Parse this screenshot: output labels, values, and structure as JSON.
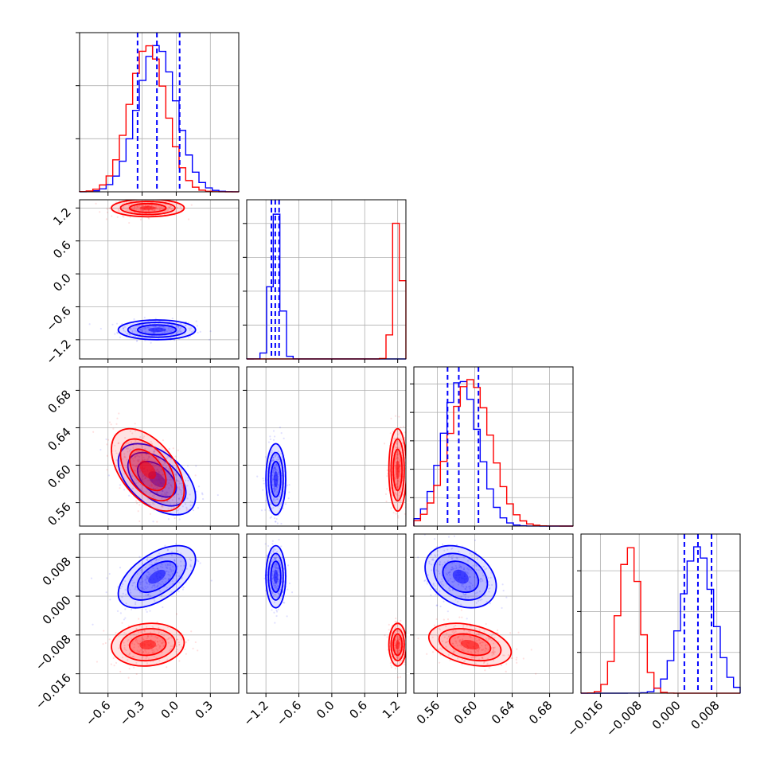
{
  "chart_data": {
    "type": "corner",
    "grid": true,
    "colors": {
      "series_a": "#0000ff",
      "series_b": "#ff0000"
    },
    "series": [
      {
        "color": "#0000ff",
        "mean": [
          -0.17,
          -1.02,
          0.585,
          0.004
        ],
        "sd": [
          0.17,
          0.09,
          0.019,
          0.0032
        ],
        "corr": {
          "0_2": -0.5,
          "0_3": 0.55,
          "2_3": -0.3
        }
      },
      {
        "color": "#ff0000",
        "mean": [
          -0.25,
          1.2,
          0.595,
          -0.01
        ],
        "sd": [
          0.16,
          0.08,
          0.022,
          0.0022
        ],
        "corr": {
          "0_2": -0.5,
          "0_3": 0.1,
          "2_3": -0.35
        }
      }
    ],
    "parameters": [
      {
        "range": [
          -0.85,
          0.55
        ],
        "ticks": [
          -0.6,
          -0.3,
          0.0,
          0.3
        ],
        "tick_labels": [
          "−0.6",
          "−0.3",
          "0.0",
          "0.3"
        ],
        "quantiles": [
          -0.34,
          -0.17,
          0.03
        ]
      },
      {
        "range": [
          -1.55,
          1.35
        ],
        "ticks": [
          -1.2,
          -0.6,
          0.0,
          0.6,
          1.2
        ],
        "tick_labels": [
          "−1.2",
          "−0.6",
          "0.0",
          "0.6",
          "1.2"
        ],
        "quantiles": [
          -1.1,
          -1.03,
          -0.96
        ]
      },
      {
        "range": [
          0.535,
          0.705
        ],
        "ticks": [
          0.56,
          0.6,
          0.64,
          0.68
        ],
        "tick_labels": [
          "0.56",
          "0.60",
          "0.64",
          "0.68"
        ],
        "quantiles": [
          0.571,
          0.583,
          0.604
        ]
      },
      {
        "range": [
          -0.02,
          0.0128
        ],
        "ticks": [
          -0.016,
          -0.008,
          0.0,
          0.008
        ],
        "tick_labels": [
          "−0.016",
          "−0.008",
          "0.000",
          "0.008"
        ],
        "quantiles": [
          0.0013,
          0.0041,
          0.0069
        ]
      }
    ],
    "diag_hist_max": [
      {
        "ymax": 3.0,
        "yticks": [
          1,
          2,
          3
        ]
      },
      {
        "ymax": 4.7,
        "yticks": [
          1,
          2,
          3,
          4
        ]
      },
      {
        "ymax": 28,
        "yticks": [
          5,
          10,
          15,
          20,
          25
        ]
      },
      {
        "ymax": 195,
        "yticks": [
          50,
          100,
          150
        ]
      }
    ]
  }
}
